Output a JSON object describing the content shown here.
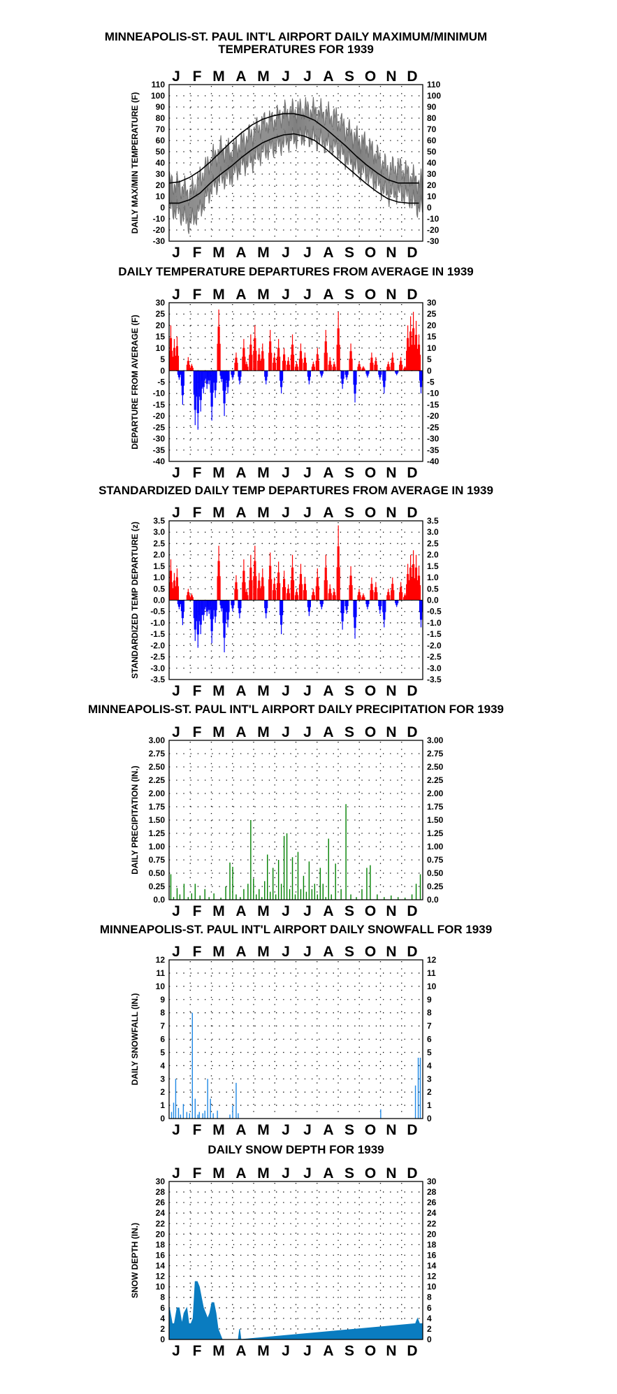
{
  "months": [
    "J",
    "F",
    "M",
    "A",
    "M",
    "J",
    "J",
    "A",
    "S",
    "O",
    "N",
    "D"
  ],
  "chart_data": [
    {
      "id": "temps",
      "type": "line",
      "title": "MINNEAPOLIS-ST. PAUL INT'L AIRPORT DAILY MAXIMUM/MINIMUM",
      "title2": "TEMPERATURES FOR 1939",
      "ylabel": "DAILY MAX/MIN TEMPERATURE (F)",
      "ylim": [
        -30,
        110
      ],
      "yticks": [
        "110",
        "100",
        "90",
        "80",
        "70",
        "60",
        "50",
        "40",
        "30",
        "20",
        "10",
        "0",
        "-10",
        "-20",
        "-30"
      ],
      "grid": "dotted",
      "series": [],
      "x": [
        1,
        15,
        30,
        45,
        60,
        75,
        90,
        105,
        120,
        135,
        150,
        165,
        180,
        195,
        210,
        225,
        240,
        255,
        270,
        285,
        300,
        315,
        330,
        345,
        360
      ],
      "max_approx": [
        22,
        20,
        12,
        26,
        42,
        52,
        50,
        58,
        66,
        75,
        78,
        84,
        86,
        88,
        86,
        84,
        80,
        70,
        62,
        56,
        46,
        34,
        36,
        30,
        22
      ],
      "min_approx": [
        4,
        0,
        -10,
        2,
        20,
        30,
        32,
        42,
        46,
        54,
        58,
        62,
        66,
        68,
        66,
        62,
        58,
        48,
        40,
        34,
        26,
        16,
        18,
        14,
        4
      ],
      "normal_high": [
        22,
        23,
        27,
        33,
        41,
        50,
        59,
        67,
        74,
        79,
        82,
        84,
        84,
        82,
        78,
        71,
        63,
        55,
        46,
        38,
        31,
        25,
        22,
        22,
        22
      ],
      "normal_low": [
        4,
        4,
        7,
        13,
        22,
        30,
        37,
        45,
        52,
        58,
        62,
        65,
        66,
        64,
        60,
        53,
        45,
        37,
        29,
        21,
        14,
        8,
        5,
        4,
        4
      ],
      "colors": {
        "series": "#808080",
        "normal": "#000000"
      }
    },
    {
      "id": "dep",
      "type": "bar",
      "title": "DAILY TEMPERATURE DEPARTURES FROM AVERAGE IN 1939",
      "ylabel": "DEPARTURE FROM AVERAGE (F)",
      "ylim": [
        -40,
        30
      ],
      "yticks": [
        "30",
        "25",
        "20",
        "15",
        "10",
        "5",
        "0",
        "-5",
        "-10",
        "-15",
        "-20",
        "-25",
        "-30",
        "-35",
        "-40"
      ],
      "grid": "dotted",
      "colors": {
        "positive": "#ff0000",
        "negative": "#0000ff"
      },
      "x": [
        3,
        8,
        12,
        15,
        20,
        28,
        33,
        38,
        42,
        46,
        50,
        55,
        58,
        62,
        67,
        72,
        76,
        80,
        85,
        92,
        97,
        102,
        108,
        112,
        118,
        124,
        130,
        135,
        140,
        146,
        152,
        158,
        162,
        166,
        172,
        178,
        184,
        190,
        196,
        202,
        208,
        214,
        220,
        226,
        232,
        238,
        244,
        250,
        256,
        262,
        268,
        274,
        280,
        286,
        292,
        298,
        304,
        310,
        316,
        322,
        328,
        334,
        340,
        344,
        348,
        352,
        356,
        360,
        363
      ],
      "values": [
        20,
        14,
        15,
        -4,
        -15,
        6,
        3,
        -24,
        -26,
        -18,
        -10,
        -8,
        -6,
        -22,
        -12,
        27,
        -5,
        -20,
        -10,
        -4,
        8,
        -6,
        14,
        4,
        16,
        20,
        10,
        12,
        -6,
        18,
        8,
        14,
        -10,
        10,
        6,
        16,
        4,
        12,
        8,
        -6,
        4,
        10,
        -3,
        18,
        6,
        4,
        26,
        -8,
        -4,
        12,
        -14,
        4,
        2,
        -3,
        8,
        6,
        -4,
        -10,
        4,
        8,
        -2,
        6,
        2,
        20,
        24,
        26,
        22,
        16,
        -10
      ]
    },
    {
      "id": "std",
      "type": "bar",
      "title": "STANDARDIZED DAILY TEMP DEPARTURES FROM AVERAGE IN 1939",
      "ylabel": "STANDARDIZED TEMP DEPARTURE (z)",
      "ylim": [
        -3.5,
        3.5
      ],
      "yticks": [
        "3.5",
        "3.0",
        "2.5",
        "2.0",
        "1.5",
        "1.0",
        "0.5",
        "0.0",
        "-0.5",
        "-1.0",
        "-1.5",
        "-2.0",
        "-2.5",
        "-3.0",
        "-3.5"
      ],
      "yticks_right": [
        "3.5",
        "3.0",
        "2.5",
        "2.0",
        "1.5",
        "1.0",
        "0.5",
        "0.0",
        "-0.5",
        "-1.0",
        "-1.5",
        "-2.0",
        "-2.5",
        "-3.0",
        "-3.5"
      ],
      "grid": "dotted",
      "colors": {
        "positive": "#ff0000",
        "negative": "#0000ff"
      },
      "x": [
        3,
        8,
        12,
        15,
        20,
        28,
        33,
        38,
        42,
        46,
        50,
        55,
        58,
        62,
        67,
        72,
        76,
        80,
        85,
        92,
        97,
        102,
        108,
        112,
        118,
        124,
        130,
        135,
        140,
        146,
        152,
        158,
        162,
        166,
        172,
        178,
        184,
        190,
        196,
        202,
        208,
        214,
        220,
        226,
        232,
        238,
        244,
        250,
        256,
        262,
        268,
        274,
        280,
        286,
        292,
        298,
        304,
        310,
        316,
        322,
        328,
        334,
        340,
        344,
        348,
        352,
        356,
        360,
        363
      ],
      "values": [
        1.8,
        1.2,
        1.4,
        -0.4,
        -1.1,
        0.5,
        0.3,
        -1.8,
        -2.1,
        -1.5,
        -0.9,
        -0.7,
        -0.6,
        -1.9,
        -1.0,
        2.4,
        -0.5,
        -2.3,
        -1.2,
        -0.5,
        1.1,
        -0.8,
        1.8,
        0.5,
        2.0,
        2.4,
        1.2,
        1.4,
        -0.8,
        2.1,
        1.0,
        1.7,
        -1.5,
        1.3,
        0.7,
        2.0,
        0.5,
        1.6,
        1.0,
        -0.7,
        0.5,
        1.4,
        -0.4,
        2.0,
        0.7,
        0.5,
        3.3,
        -1.3,
        -0.6,
        1.5,
        -1.7,
        0.5,
        0.3,
        -0.4,
        1.0,
        0.8,
        -0.6,
        -1.2,
        0.5,
        1.0,
        -0.3,
        0.8,
        0.3,
        1.6,
        2.0,
        2.2,
        2.0,
        1.5,
        -1.2
      ]
    },
    {
      "id": "prcp",
      "type": "bar",
      "title": "MINNEAPOLIS-ST. PAUL INT'L AIRPORT DAILY PRECIPITATION FOR 1939",
      "ylabel": "DAILY PRECIPITATION (IN.)",
      "ylim": [
        0,
        3
      ],
      "yticks": [
        "3.00",
        "2.75",
        "2.50",
        "2.25",
        "2.00",
        "1.75",
        "1.50",
        "1.25",
        "1.00",
        "0.75",
        "0.50",
        "0.25",
        "0.0"
      ],
      "yticks_right": [
        "3.00",
        "2.75",
        "2.50",
        "2.25",
        "2.00",
        "1.75",
        "1.50",
        "1.25",
        "1.00",
        "0.75",
        "0.50",
        "0.25",
        "0.0"
      ],
      "grid": "dotted",
      "colors": {
        "bar": "#008000"
      },
      "x": [
        3,
        7,
        12,
        16,
        22,
        28,
        33,
        38,
        45,
        52,
        58,
        65,
        75,
        82,
        88,
        92,
        97,
        103,
        108,
        114,
        118,
        122,
        126,
        130,
        134,
        138,
        142,
        146,
        150,
        154,
        158,
        162,
        166,
        170,
        174,
        178,
        182,
        186,
        190,
        194,
        198,
        202,
        206,
        210,
        214,
        218,
        222,
        226,
        230,
        234,
        240,
        248,
        255,
        262,
        270,
        278,
        285,
        290,
        300,
        310,
        320,
        330,
        340,
        350,
        356,
        362
      ],
      "values": [
        0.48,
        0.05,
        0.22,
        0.1,
        0.3,
        0.05,
        0.12,
        0.3,
        0.08,
        0.2,
        0.05,
        0.12,
        0.04,
        0.25,
        0.7,
        0.62,
        0.1,
        0.05,
        0.2,
        0.3,
        1.5,
        0.4,
        0.1,
        0.2,
        0.05,
        0.35,
        0.85,
        0.15,
        0.6,
        0.1,
        0.75,
        0.3,
        1.2,
        1.25,
        0.2,
        0.8,
        0.1,
        0.9,
        0.2,
        0.45,
        0.15,
        0.72,
        0.2,
        0.3,
        0.1,
        0.6,
        0.3,
        0.05,
        1.15,
        0.1,
        0.68,
        0.2,
        1.8,
        0.1,
        0.05,
        0.2,
        0.6,
        0.65,
        0.1,
        0.05,
        0.08,
        0.05,
        0.04,
        0.1,
        0.3,
        0.48
      ]
    },
    {
      "id": "snow",
      "type": "bar",
      "title": "MINNEAPOLIS-ST. PAUL INT'L AIRPORT DAILY SNOWFALL FOR 1939",
      "ylabel": "DAILY SNOWFALL (IN.)",
      "ylim": [
        0,
        12
      ],
      "yticks": [
        "12",
        "11",
        "10",
        "9",
        "8",
        "7",
        "6",
        "5",
        "4",
        "3",
        "2",
        "1",
        "0"
      ],
      "grid": "dotted",
      "colors": {
        "bar": "#1e88e5"
      },
      "x": [
        4,
        7,
        10,
        14,
        17,
        21,
        26,
        30,
        34,
        38,
        42,
        44,
        49,
        52,
        56,
        60,
        64,
        70,
        88,
        92,
        97,
        100,
        305,
        355,
        359,
        362
      ],
      "values": [
        0.5,
        1.2,
        3.0,
        0.8,
        0.3,
        1.1,
        0.5,
        0.4,
        8.0,
        1.5,
        0.3,
        0.5,
        0.4,
        0.6,
        3.0,
        1.5,
        0.4,
        0.6,
        0.3,
        1.0,
        2.7,
        0.4,
        0.7,
        2.5,
        4.6,
        4.6
      ]
    },
    {
      "id": "depth",
      "type": "area",
      "title": "DAILY SNOW DEPTH FOR 1939",
      "ylabel": "SNOW DEPTH (IN.)",
      "ylim": [
        0,
        30
      ],
      "yticks": [
        "30",
        "28",
        "26",
        "24",
        "22",
        "20",
        "18",
        "16",
        "14",
        "12",
        "10",
        "8",
        "6",
        "4",
        "2",
        "0"
      ],
      "grid": "dotted",
      "colors": {
        "fill": "#0a7cc0"
      },
      "x": [
        1,
        5,
        8,
        12,
        15,
        19,
        22,
        26,
        29,
        32,
        35,
        38,
        41,
        44,
        47,
        50,
        53,
        56,
        59,
        62,
        65,
        68,
        71,
        74,
        77,
        80,
        100,
        102,
        104,
        355,
        358,
        361,
        365
      ],
      "values": [
        6,
        3,
        3,
        6,
        6,
        3,
        5,
        6,
        3,
        3,
        4,
        11,
        11,
        10,
        8,
        6,
        5,
        4,
        5,
        7,
        7,
        5,
        2,
        1,
        0,
        0,
        0,
        2,
        0,
        3,
        4,
        3,
        3
      ]
    }
  ]
}
